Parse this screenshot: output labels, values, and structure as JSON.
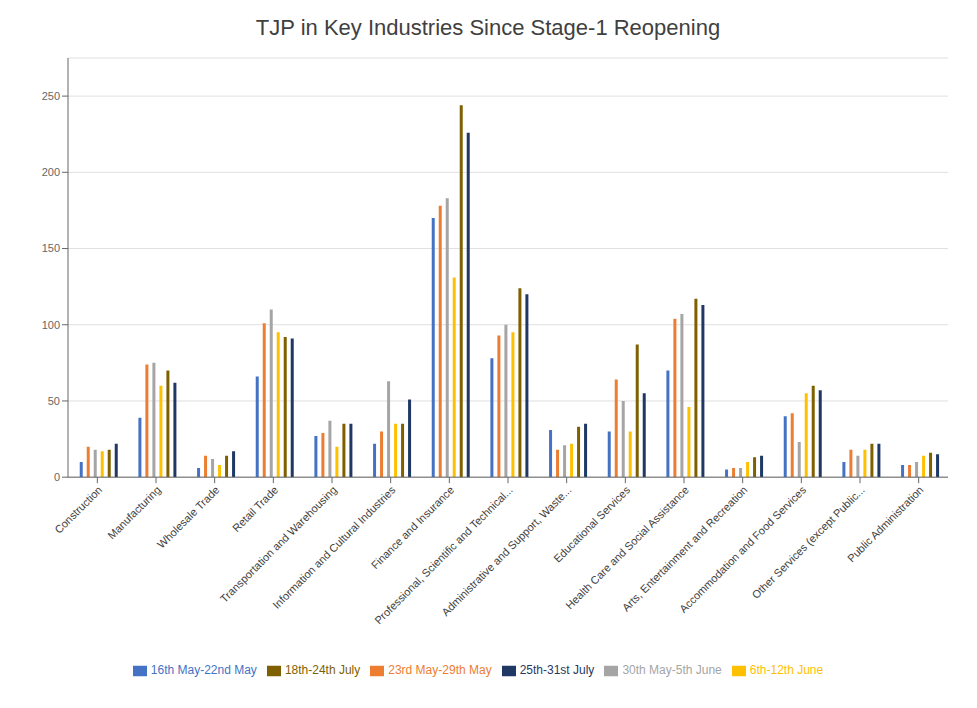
{
  "chart_data": {
    "type": "bar",
    "title": "TJP in Key Industries Since Stage-1 Reopening",
    "categories": [
      "Construction",
      "Manufacturing",
      "Wholesale Trade",
      "Retail Trade",
      "Transportation and Warehousing",
      "Information and Cultural Industries",
      "Finance and Insurance",
      "Professional, Scientific and Technical...",
      "Administrative and Support, Waste...",
      "Educational Services",
      "Health Care and Social Assistance",
      "Arts, Entertainment and Recreation",
      "Accommodation and Food Services",
      "Other Services (except Public...",
      "Public Administration"
    ],
    "series": [
      {
        "name": "16th May-22nd May",
        "color": "#4472C4",
        "values": [
          10,
          39,
          6,
          66,
          27,
          22,
          170,
          78,
          31,
          30,
          70,
          5,
          40,
          10,
          8
        ]
      },
      {
        "name": "23rd May-29th May",
        "color": "#ED7D31",
        "values": [
          20,
          74,
          14,
          101,
          29,
          30,
          178,
          93,
          18,
          64,
          104,
          6,
          42,
          18,
          8
        ]
      },
      {
        "name": "30th May-5th June",
        "color": "#A5A5A5",
        "values": [
          18,
          75,
          12,
          110,
          37,
          63,
          183,
          100,
          21,
          50,
          107,
          6,
          23,
          14,
          10
        ]
      },
      {
        "name": "6th-12th June",
        "color": "#FFC000",
        "values": [
          17,
          60,
          8,
          95,
          20,
          35,
          131,
          95,
          22,
          30,
          46,
          10,
          55,
          18,
          14
        ]
      },
      {
        "name": "18th-24th July",
        "color": "#7F6000",
        "values": [
          18,
          70,
          14,
          92,
          35,
          35,
          244,
          124,
          33,
          87,
          117,
          13,
          60,
          22,
          16
        ]
      },
      {
        "name": "25th-31st July",
        "color": "#1F3864",
        "values": [
          22,
          62,
          17,
          91,
          35,
          51,
          226,
          120,
          35,
          55,
          113,
          14,
          57,
          22,
          15
        ]
      }
    ],
    "ylim": [
      0,
      275
    ],
    "yticks": [
      0,
      50,
      100,
      150,
      200,
      250
    ],
    "grid": true,
    "legend": "bottom"
  }
}
